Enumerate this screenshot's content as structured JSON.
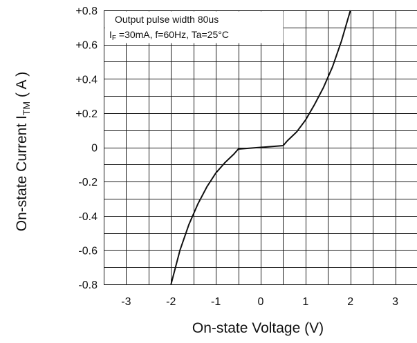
{
  "chart_data": {
    "type": "line",
    "xlabel": "On-state Voltage (V)",
    "ylabel": {
      "prefix": "On-state Current I",
      "subscript": "TM",
      "suffix": " ( A )"
    },
    "xlim": [
      -3.5,
      3.5
    ],
    "ylim": [
      -0.8,
      0.8
    ],
    "x_ticks": [
      -3,
      -2,
      -1,
      0,
      1,
      2,
      3
    ],
    "x_tick_labels": [
      "-3",
      "-2",
      "-1",
      "0",
      "1",
      "2",
      "3"
    ],
    "y_ticks": [
      0.8,
      0.6,
      0.4,
      0.2,
      0,
      -0.2,
      -0.4,
      -0.6,
      -0.8
    ],
    "y_tick_labels": [
      "+0.8",
      "+0.6",
      "+0.4",
      "+0.2",
      "0",
      "-0.2",
      "-0.4",
      "-0.6",
      "-0.8"
    ],
    "grid": true,
    "annotation": {
      "line1": "Output pulse width 80us",
      "line2_prefix": "I",
      "line2_subscript": "F",
      "line2_rest": " =30mA, f=60Hz, Ta=25°C",
      "placement": "top-left"
    },
    "series": [
      {
        "points": [
          [
            -2.0,
            -0.8
          ],
          [
            -1.8,
            -0.6
          ],
          [
            -1.6,
            -0.45
          ],
          [
            -1.4,
            -0.33
          ],
          [
            -1.2,
            -0.23
          ],
          [
            -1.0,
            -0.15
          ],
          [
            -0.8,
            -0.09
          ],
          [
            -0.6,
            -0.04
          ],
          [
            -0.5,
            -0.01
          ],
          [
            0.0,
            0.0
          ],
          [
            0.5,
            0.01
          ],
          [
            0.6,
            0.04
          ],
          [
            0.8,
            0.09
          ],
          [
            1.0,
            0.16
          ],
          [
            1.2,
            0.25
          ],
          [
            1.4,
            0.35
          ],
          [
            1.6,
            0.47
          ],
          [
            1.8,
            0.62
          ],
          [
            2.0,
            0.8
          ]
        ]
      }
    ],
    "colors": {
      "line": "#111111",
      "grid": "#1a1a1a",
      "background": "#ffffff"
    }
  }
}
